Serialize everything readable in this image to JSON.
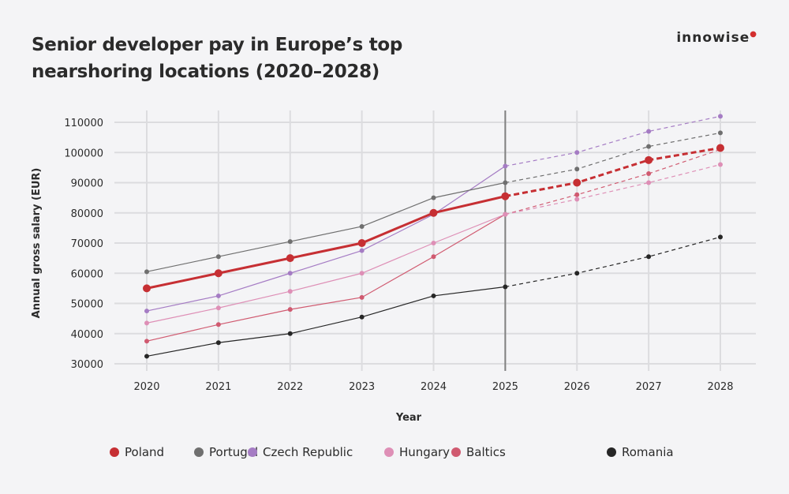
{
  "brand": "innowise",
  "colors": {
    "Poland": "#c62f33",
    "Portugal": "#6f6f6f",
    "Czech Republic": "#a57cc4",
    "Hungary": "#de8fb6",
    "Baltics": "#d05a70",
    "Romania": "#262626",
    "grid": "#dcdcdf",
    "forecast_divider": "#808080"
  },
  "chart_data": {
    "type": "line",
    "title": "Senior developer pay in Europe’s top nearshoring locations (2020–2028)",
    "xlabel": "Year",
    "ylabel": "Annual gross salary (EUR)",
    "x": [
      2020,
      2021,
      2022,
      2023,
      2024,
      2025,
      2026,
      2027,
      2028
    ],
    "ylim": [
      30000,
      110000
    ],
    "yticks": [
      30000,
      40000,
      50000,
      60000,
      70000,
      80000,
      90000,
      100000,
      110000
    ],
    "grid": true,
    "legend_position": "bottom",
    "forecast_from": 2025,
    "forecast_style": "dashed",
    "series": [
      {
        "name": "Poland",
        "values": [
          55000,
          60000,
          65000,
          70000,
          80000,
          85500,
          90000,
          97500,
          101500
        ]
      },
      {
        "name": "Portugal",
        "values": [
          60500,
          65500,
          70500,
          75500,
          85000,
          90000,
          94500,
          102000,
          106500
        ]
      },
      {
        "name": "Czech Republic",
        "values": [
          47500,
          52500,
          60000,
          67500,
          79500,
          95500,
          100000,
          107000,
          112000
        ]
      },
      {
        "name": "Hungary",
        "values": [
          43500,
          48500,
          54000,
          60000,
          70000,
          79500,
          84500,
          90000,
          96000
        ]
      },
      {
        "name": "Baltics",
        "values": [
          37500,
          43000,
          48000,
          52000,
          65500,
          79500,
          86000,
          93000,
          101000
        ]
      },
      {
        "name": "Romania",
        "values": [
          32500,
          37000,
          40000,
          45500,
          52500,
          55500,
          60000,
          65500,
          72000
        ]
      }
    ]
  }
}
